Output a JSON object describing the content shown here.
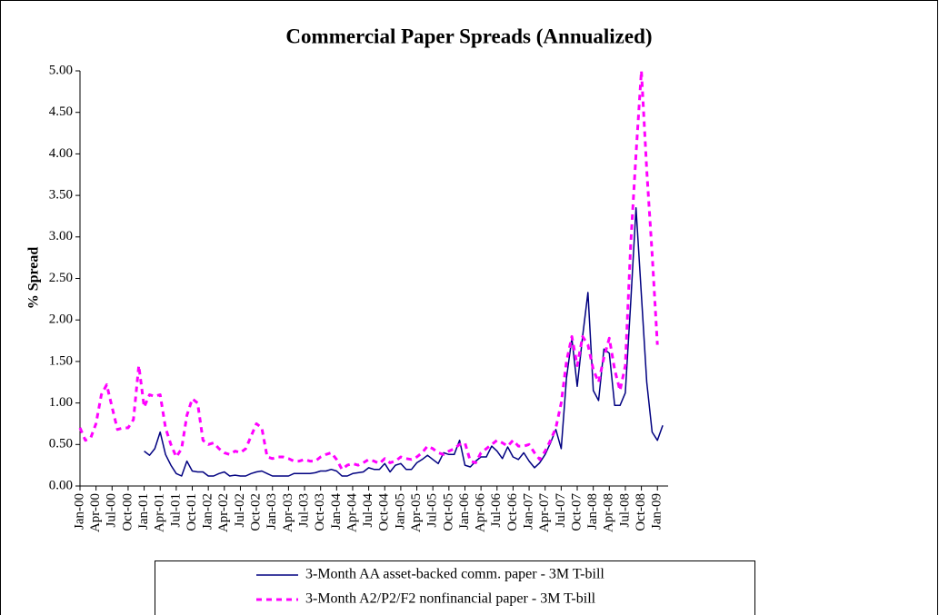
{
  "chart_data": {
    "type": "line",
    "title": "Commercial Paper Spreads (Annualized)",
    "y_label": "% Spread",
    "categories": [
      "Jan-00",
      null,
      null,
      "Apr-00",
      null,
      null,
      "Jul-00",
      null,
      null,
      "Oct-00",
      null,
      null,
      "Jan-01",
      null,
      null,
      "Apr-01",
      null,
      null,
      "Jul-01",
      null,
      null,
      "Oct-01",
      null,
      null,
      "Jan-02",
      null,
      null,
      "Apr-02",
      null,
      null,
      "Jul-02",
      null,
      null,
      "Oct-02",
      null,
      null,
      "Jan-03",
      null,
      null,
      "Apr-03",
      null,
      null,
      "Jul-03",
      null,
      null,
      "Oct-03",
      null,
      null,
      "Jan-04",
      null,
      null,
      "Apr-04",
      null,
      null,
      "Jul-04",
      null,
      null,
      "Oct-04",
      null,
      null,
      "Jan-05",
      null,
      null,
      "Apr-05",
      null,
      null,
      "Jul-05",
      null,
      null,
      "Oct-05",
      null,
      null,
      "Jan-06",
      null,
      null,
      "Apr-06",
      null,
      null,
      "Jul-06",
      null,
      null,
      "Oct-06",
      null,
      null,
      "Jan-07",
      null,
      null,
      "Apr-07",
      null,
      null,
      "Jul-07",
      null,
      null,
      "Oct-07",
      null,
      null,
      "Jan-08",
      null,
      null,
      "Apr-08",
      null,
      null,
      "Jul-08",
      null,
      null,
      "Oct-08",
      null,
      null,
      "Jan-09",
      null,
      null
    ],
    "series": [
      {
        "name": "3-Month AA asset-backed comm. paper - 3M T-bill",
        "color": "#000080",
        "dashed": false,
        "values": [
          null,
          null,
          null,
          null,
          null,
          null,
          null,
          null,
          null,
          null,
          null,
          null,
          0.42,
          0.37,
          0.45,
          0.65,
          0.38,
          0.25,
          0.15,
          0.12,
          0.3,
          0.18,
          0.17,
          0.17,
          0.12,
          0.12,
          0.15,
          0.17,
          0.12,
          0.13,
          0.12,
          0.12,
          0.15,
          0.17,
          0.18,
          0.15,
          0.12,
          0.12,
          0.12,
          0.12,
          0.15,
          0.15,
          0.15,
          0.15,
          0.16,
          0.18,
          0.18,
          0.2,
          0.18,
          0.12,
          0.12,
          0.15,
          0.16,
          0.17,
          0.22,
          0.2,
          0.2,
          0.27,
          0.17,
          0.25,
          0.27,
          0.2,
          0.2,
          0.28,
          0.32,
          0.37,
          0.32,
          0.27,
          0.4,
          0.38,
          0.38,
          0.55,
          0.25,
          0.23,
          0.3,
          0.35,
          0.35,
          0.48,
          0.42,
          0.33,
          0.47,
          0.35,
          0.32,
          0.4,
          0.3,
          0.22,
          0.28,
          0.38,
          0.52,
          0.68,
          0.45,
          1.3,
          1.78,
          1.2,
          1.8,
          2.33,
          1.15,
          1.03,
          1.65,
          1.6,
          0.97,
          0.97,
          1.12,
          2.2,
          3.35,
          2.3,
          1.25,
          0.65,
          0.55,
          0.73,
          null
        ]
      },
      {
        "name": "3-Month A2/P2/F2 nonfinancial paper - 3M T-bill",
        "color": "#ff00ff",
        "dashed": true,
        "values": [
          0.7,
          0.55,
          0.58,
          0.75,
          1.1,
          1.22,
          0.95,
          0.68,
          0.7,
          0.7,
          0.8,
          1.45,
          0.95,
          1.1,
          1.08,
          1.1,
          0.7,
          0.5,
          0.35,
          0.45,
          0.85,
          1.05,
          1.0,
          0.55,
          0.5,
          0.52,
          0.45,
          0.4,
          0.38,
          0.42,
          0.4,
          0.45,
          0.6,
          0.75,
          0.7,
          0.35,
          0.33,
          0.35,
          0.35,
          0.33,
          0.3,
          0.3,
          0.32,
          0.3,
          0.3,
          0.35,
          0.38,
          0.4,
          0.32,
          0.2,
          0.25,
          0.27,
          0.25,
          0.28,
          0.32,
          0.3,
          0.27,
          0.33,
          0.28,
          0.3,
          0.35,
          0.33,
          0.32,
          0.35,
          0.4,
          0.48,
          0.45,
          0.4,
          0.38,
          0.42,
          0.45,
          0.5,
          0.52,
          0.3,
          0.28,
          0.4,
          0.45,
          0.5,
          0.55,
          0.52,
          0.48,
          0.55,
          0.48,
          0.48,
          0.5,
          0.4,
          0.32,
          0.42,
          0.55,
          0.7,
          1.0,
          1.5,
          1.8,
          1.45,
          1.8,
          1.7,
          1.4,
          1.25,
          1.55,
          1.78,
          1.4,
          1.15,
          1.45,
          2.9,
          4.0,
          5.0,
          3.8,
          2.8,
          1.7,
          null,
          null
        ]
      }
    ],
    "ylim": [
      0,
      5
    ],
    "yticks": [
      {
        "value": 0,
        "label": "0.00"
      },
      {
        "value": 0.5,
        "label": "0.50"
      },
      {
        "value": 1,
        "label": "1.00"
      },
      {
        "value": 1.5,
        "label": "1.50"
      },
      {
        "value": 2,
        "label": "2.00"
      },
      {
        "value": 2.5,
        "label": "2.50"
      },
      {
        "value": 3,
        "label": "3.00"
      },
      {
        "value": 3.5,
        "label": "3.50"
      },
      {
        "value": 4,
        "label": "4.00"
      },
      {
        "value": 4.5,
        "label": "4.50"
      },
      {
        "value": 5,
        "label": "5.00"
      }
    ],
    "grid": false,
    "legend": "bottom"
  }
}
